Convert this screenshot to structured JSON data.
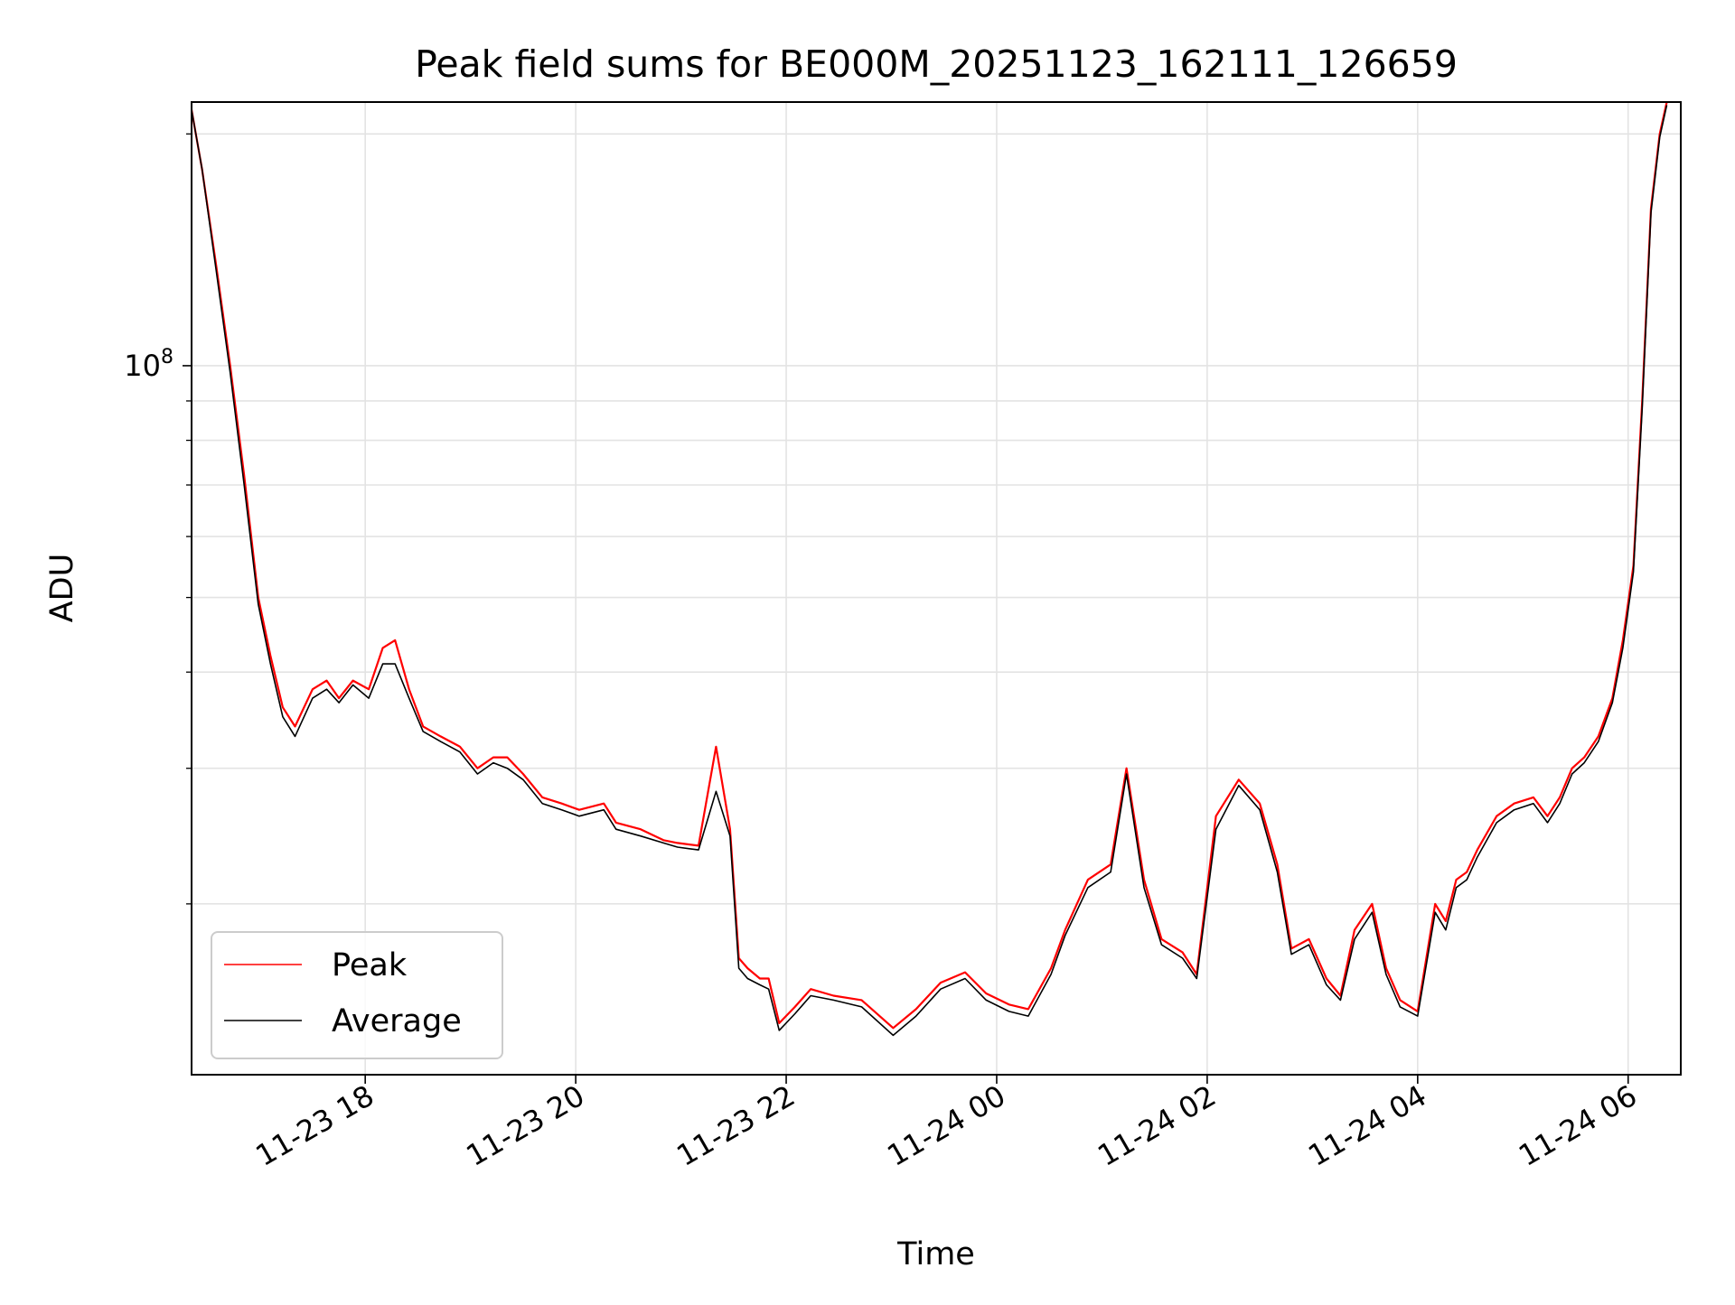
{
  "chart_data": {
    "type": "line",
    "title": "Peak field sums for BE000M_20251123_162111_126659",
    "xlabel": "Time",
    "ylabel": "ADU",
    "y_scale": "log",
    "ylim": [
      12000000,
      220000000
    ],
    "xlim": [
      "2025-11-23 16:21",
      "2025-11-24 06:30"
    ],
    "grid": true,
    "legend_position": "lower-left",
    "x_ticks": [
      "11-23 18",
      "11-23 20",
      "11-23 22",
      "11-24 00",
      "11-24 02",
      "11-24 04",
      "11-24 06"
    ],
    "x_tick_times": [
      "2025-11-23 18:00",
      "2025-11-23 20:00",
      "2025-11-23 22:00",
      "2025-11-24 00:00",
      "2025-11-24 02:00",
      "2025-11-24 04:00",
      "2025-11-24 06:00"
    ],
    "y_major_ticks": [
      {
        "label": "10",
        "exponent": "8",
        "value": 100000000
      }
    ],
    "y_minor_ticks": [
      20000000,
      30000000,
      40000000,
      50000000,
      60000000,
      70000000,
      80000000,
      90000000,
      200000000
    ],
    "series": [
      {
        "name": "Peak",
        "color": "#ff0000",
        "x": [
          "2025-11-23 16:21",
          "2025-11-23 16:27",
          "2025-11-23 16:35",
          "2025-11-23 16:43",
          "2025-11-23 16:51",
          "2025-11-23 16:59",
          "2025-11-23 17:06",
          "2025-11-23 17:13",
          "2025-11-23 17:20",
          "2025-11-23 17:30",
          "2025-11-23 17:38",
          "2025-11-23 17:45",
          "2025-11-23 17:53",
          "2025-11-23 18:02",
          "2025-11-23 18:10",
          "2025-11-23 18:17",
          "2025-11-23 18:25",
          "2025-11-23 18:33",
          "2025-11-23 18:43",
          "2025-11-23 18:54",
          "2025-11-23 19:04",
          "2025-11-23 19:13",
          "2025-11-23 19:21",
          "2025-11-23 19:30",
          "2025-11-23 19:41",
          "2025-11-23 19:52",
          "2025-11-23 20:02",
          "2025-11-23 20:16",
          "2025-11-23 20:23",
          "2025-11-23 20:37",
          "2025-11-23 20:50",
          "2025-11-23 20:58",
          "2025-11-23 21:10",
          "2025-11-23 21:20",
          "2025-11-23 21:28",
          "2025-11-23 21:33",
          "2025-11-23 21:38",
          "2025-11-23 21:45",
          "2025-11-23 21:50",
          "2025-11-23 21:56",
          "2025-11-23 22:05",
          "2025-11-23 22:14",
          "2025-11-23 22:27",
          "2025-11-23 22:43",
          "2025-11-23 23:01",
          "2025-11-23 23:14",
          "2025-11-23 23:28",
          "2025-11-23 23:42",
          "2025-11-23 23:54",
          "2025-11-24 00:07",
          "2025-11-24 00:18",
          "2025-11-24 00:31",
          "2025-11-24 00:39",
          "2025-11-24 00:52",
          "2025-11-24 01:05",
          "2025-11-24 01:14",
          "2025-11-24 01:24",
          "2025-11-24 01:34",
          "2025-11-24 01:46",
          "2025-11-24 01:54",
          "2025-11-24 02:05",
          "2025-11-24 02:18",
          "2025-11-24 02:30",
          "2025-11-24 02:40",
          "2025-11-24 02:48",
          "2025-11-24 02:58",
          "2025-11-24 03:08",
          "2025-11-24 03:16",
          "2025-11-24 03:24",
          "2025-11-24 03:34",
          "2025-11-24 03:42",
          "2025-11-24 03:50",
          "2025-11-24 04:00",
          "2025-11-24 04:10",
          "2025-11-24 04:16",
          "2025-11-24 04:22",
          "2025-11-24 04:28",
          "2025-11-24 04:34",
          "2025-11-24 04:45",
          "2025-11-24 04:55",
          "2025-11-24 05:06",
          "2025-11-24 05:14",
          "2025-11-24 05:21",
          "2025-11-24 05:28",
          "2025-11-24 05:35",
          "2025-11-24 05:43",
          "2025-11-24 05:51",
          "2025-11-24 05:57",
          "2025-11-24 06:03",
          "2025-11-24 06:08",
          "2025-11-24 06:13",
          "2025-11-24 06:18",
          "2025-11-24 06:22"
        ],
        "values": [
          215000000,
          180000000,
          135000000,
          100000000,
          72000000,
          50000000,
          42000000,
          36000000,
          34000000,
          38000000,
          39000000,
          37000000,
          39000000,
          38000000,
          43000000,
          44000000,
          38000000,
          34000000,
          33000000,
          32000000,
          30000000,
          31000000,
          31000000,
          29500000,
          27500000,
          27000000,
          26500000,
          27000000,
          25500000,
          25000000,
          24200000,
          24000000,
          23800000,
          32000000,
          25000000,
          17000000,
          16500000,
          16000000,
          16000000,
          14000000,
          14700000,
          15500000,
          15200000,
          15000000,
          13800000,
          14600000,
          15800000,
          16300000,
          15300000,
          14800000,
          14600000,
          16500000,
          18500000,
          21500000,
          22500000,
          30000000,
          21500000,
          18000000,
          17300000,
          16200000,
          26000000,
          29000000,
          27000000,
          22500000,
          17500000,
          18000000,
          16000000,
          15200000,
          18500000,
          20000000,
          16500000,
          15000000,
          14500000,
          20000000,
          19000000,
          21500000,
          22000000,
          23500000,
          26000000,
          27000000,
          27500000,
          26000000,
          27500000,
          30000000,
          31000000,
          33000000,
          37000000,
          44000000,
          55000000,
          90000000,
          160000000,
          200000000,
          220000000
        ]
      },
      {
        "name": "Average",
        "color": "#000000",
        "x": [
          "2025-11-23 16:21",
          "2025-11-23 16:27",
          "2025-11-23 16:35",
          "2025-11-23 16:43",
          "2025-11-23 16:51",
          "2025-11-23 16:59",
          "2025-11-23 17:06",
          "2025-11-23 17:13",
          "2025-11-23 17:20",
          "2025-11-23 17:30",
          "2025-11-23 17:38",
          "2025-11-23 17:45",
          "2025-11-23 17:53",
          "2025-11-23 18:02",
          "2025-11-23 18:10",
          "2025-11-23 18:17",
          "2025-11-23 18:25",
          "2025-11-23 18:33",
          "2025-11-23 18:43",
          "2025-11-23 18:54",
          "2025-11-23 19:04",
          "2025-11-23 19:13",
          "2025-11-23 19:21",
          "2025-11-23 19:30",
          "2025-11-23 19:41",
          "2025-11-23 19:52",
          "2025-11-23 20:02",
          "2025-11-23 20:16",
          "2025-11-23 20:23",
          "2025-11-23 20:37",
          "2025-11-23 20:50",
          "2025-11-23 20:58",
          "2025-11-23 21:10",
          "2025-11-23 21:20",
          "2025-11-23 21:28",
          "2025-11-23 21:33",
          "2025-11-23 21:38",
          "2025-11-23 21:45",
          "2025-11-23 21:50",
          "2025-11-23 21:56",
          "2025-11-23 22:05",
          "2025-11-23 22:14",
          "2025-11-23 22:27",
          "2025-11-23 22:43",
          "2025-11-23 23:01",
          "2025-11-23 23:14",
          "2025-11-23 23:28",
          "2025-11-23 23:42",
          "2025-11-23 23:54",
          "2025-11-24 00:07",
          "2025-11-24 00:18",
          "2025-11-24 00:31",
          "2025-11-24 00:39",
          "2025-11-24 00:52",
          "2025-11-24 01:05",
          "2025-11-24 01:14",
          "2025-11-24 01:24",
          "2025-11-24 01:34",
          "2025-11-24 01:46",
          "2025-11-24 01:54",
          "2025-11-24 02:05",
          "2025-11-24 02:18",
          "2025-11-24 02:30",
          "2025-11-24 02:40",
          "2025-11-24 02:48",
          "2025-11-24 02:58",
          "2025-11-24 03:08",
          "2025-11-24 03:16",
          "2025-11-24 03:24",
          "2025-11-24 03:34",
          "2025-11-24 03:42",
          "2025-11-24 03:50",
          "2025-11-24 04:00",
          "2025-11-24 04:10",
          "2025-11-24 04:16",
          "2025-11-24 04:22",
          "2025-11-24 04:28",
          "2025-11-24 04:34",
          "2025-11-24 04:45",
          "2025-11-24 04:55",
          "2025-11-24 05:06",
          "2025-11-24 05:14",
          "2025-11-24 05:21",
          "2025-11-24 05:28",
          "2025-11-24 05:35",
          "2025-11-24 05:43",
          "2025-11-24 05:51",
          "2025-11-24 05:57",
          "2025-11-24 06:03",
          "2025-11-24 06:08",
          "2025-11-24 06:13",
          "2025-11-24 06:18",
          "2025-11-24 06:22"
        ],
        "values": [
          215000000,
          180000000,
          133000000,
          98000000,
          70000000,
          49000000,
          41000000,
          35000000,
          33000000,
          37000000,
          38000000,
          36500000,
          38500000,
          37000000,
          41000000,
          41000000,
          37000000,
          33500000,
          32500000,
          31500000,
          29500000,
          30500000,
          30000000,
          29000000,
          27000000,
          26500000,
          26000000,
          26500000,
          25000000,
          24500000,
          24000000,
          23700000,
          23500000,
          28000000,
          24500000,
          16500000,
          16000000,
          15700000,
          15500000,
          13700000,
          14400000,
          15200000,
          15000000,
          14700000,
          13500000,
          14300000,
          15500000,
          16000000,
          15000000,
          14500000,
          14300000,
          16200000,
          18200000,
          21000000,
          22000000,
          29500000,
          21000000,
          17700000,
          17000000,
          16000000,
          25000000,
          28500000,
          26500000,
          22000000,
          17200000,
          17700000,
          15700000,
          15000000,
          18000000,
          19500000,
          16200000,
          14700000,
          14300000,
          19500000,
          18500000,
          21000000,
          21500000,
          23000000,
          25500000,
          26500000,
          27000000,
          25500000,
          27000000,
          29500000,
          30500000,
          32500000,
          36500000,
          43000000,
          54000000,
          88000000,
          158000000,
          198000000,
          218000000
        ]
      }
    ]
  }
}
